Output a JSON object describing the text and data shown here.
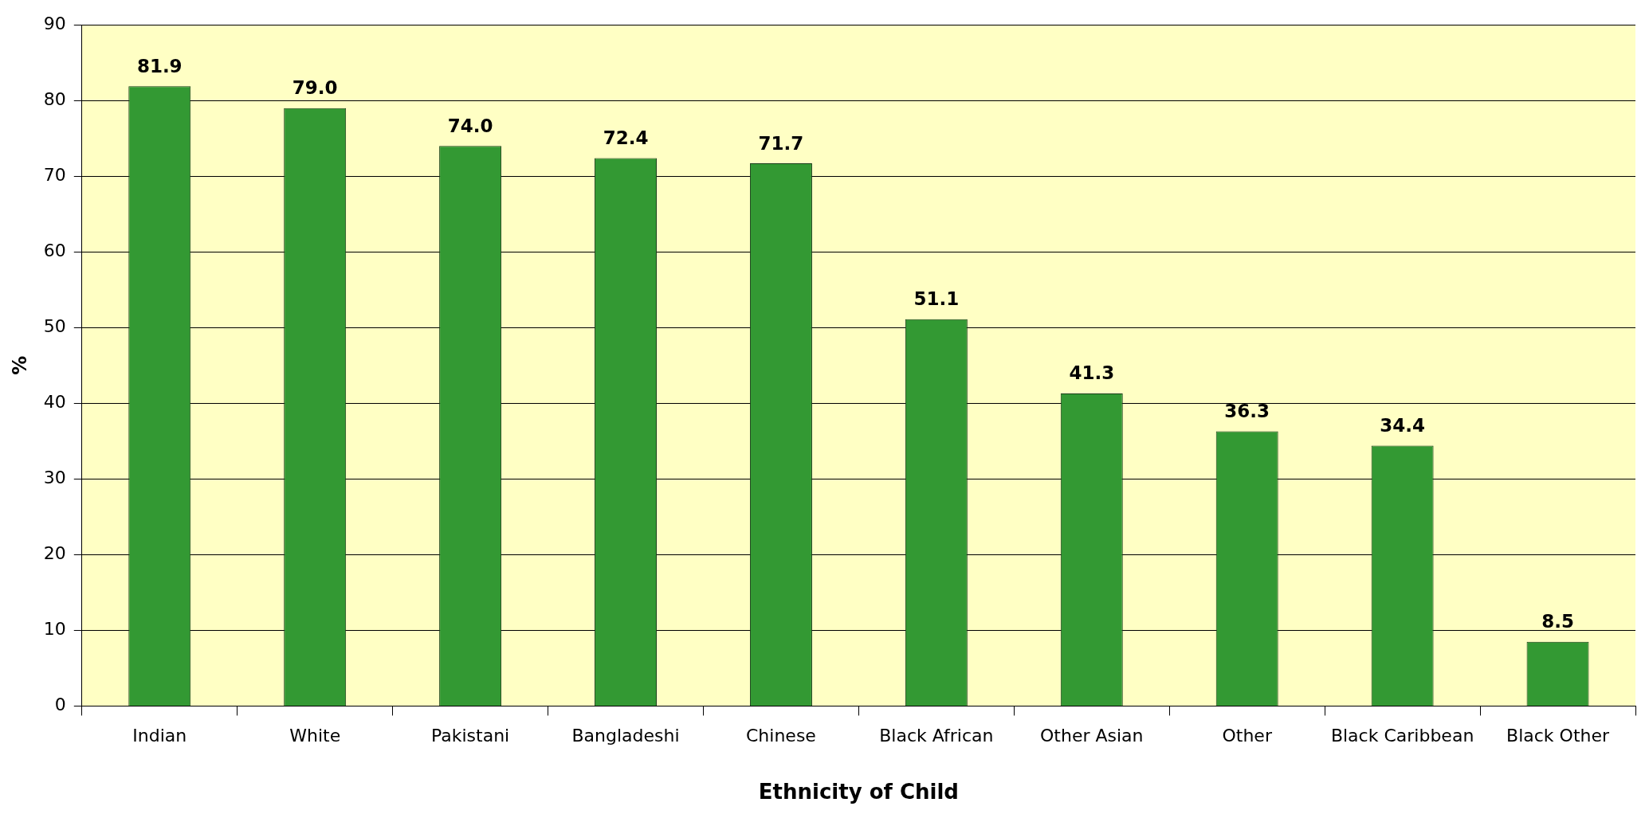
{
  "chart_data": {
    "type": "bar",
    "xlabel": "Ethnicity of Child",
    "ylabel": "%",
    "categories": [
      "Indian",
      "White",
      "Pakistani",
      "Bangladeshi",
      "Chinese",
      "Black African",
      "Other Asian",
      "Other",
      "Black Caribbean",
      "Black Other"
    ],
    "values": [
      81.9,
      79.0,
      74.0,
      72.4,
      71.7,
      51.1,
      41.3,
      36.3,
      34.4,
      8.5
    ],
    "value_labels": [
      "81.9",
      "79.0",
      "74.0",
      "72.4",
      "71.7",
      "51.1",
      "41.3",
      "36.3",
      "34.4",
      "8.5"
    ],
    "color": "#339933",
    "ylim": [
      0,
      90
    ],
    "yticks": [
      0,
      10,
      20,
      30,
      40,
      50,
      60,
      70,
      80,
      90
    ],
    "grid": "y",
    "legend": false
  }
}
